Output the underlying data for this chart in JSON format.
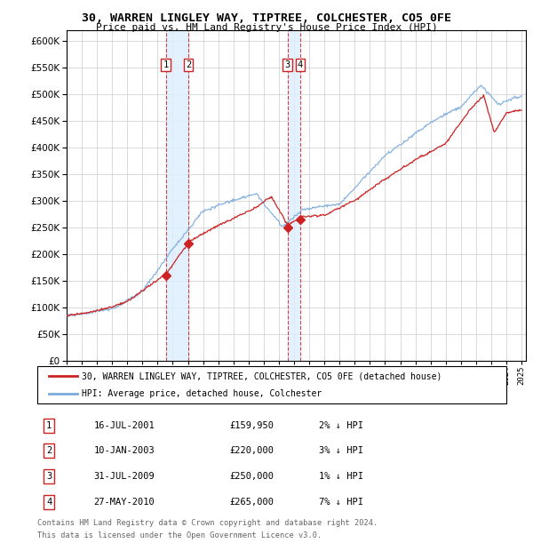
{
  "title": "30, WARREN LINGLEY WAY, TIPTREE, COLCHESTER, CO5 0FE",
  "subtitle": "Price paid vs. HM Land Registry's House Price Index (HPI)",
  "ylim": [
    0,
    620000
  ],
  "yticks": [
    0,
    50000,
    100000,
    150000,
    200000,
    250000,
    300000,
    350000,
    400000,
    450000,
    500000,
    550000,
    600000
  ],
  "legend_line1": "30, WARREN LINGLEY WAY, TIPTREE, COLCHESTER, CO5 0FE (detached house)",
  "legend_line2": "HPI: Average price, detached house, Colchester",
  "transactions": [
    {
      "num": 1,
      "date": "16-JUL-2001",
      "price": 159950,
      "pct": "2%",
      "dir": "↓",
      "year": 2001.54
    },
    {
      "num": 2,
      "date": "10-JAN-2003",
      "price": 220000,
      "pct": "3%",
      "dir": "↓",
      "year": 2003.03
    },
    {
      "num": 3,
      "date": "31-JUL-2009",
      "price": 250000,
      "pct": "1%",
      "dir": "↓",
      "year": 2009.58
    },
    {
      "num": 4,
      "date": "27-MAY-2010",
      "price": 265000,
      "pct": "7%",
      "dir": "↓",
      "year": 2010.41
    }
  ],
  "footer_line1": "Contains HM Land Registry data © Crown copyright and database right 2024.",
  "footer_line2": "This data is licensed under the Open Government Licence v3.0.",
  "hpi_color": "#7aaadd",
  "price_color": "#cc2222",
  "vline_color": "#cc2222",
  "shade_color": "#ddeeff",
  "grid_color": "#cccccc",
  "bg_color": "#ffffff"
}
